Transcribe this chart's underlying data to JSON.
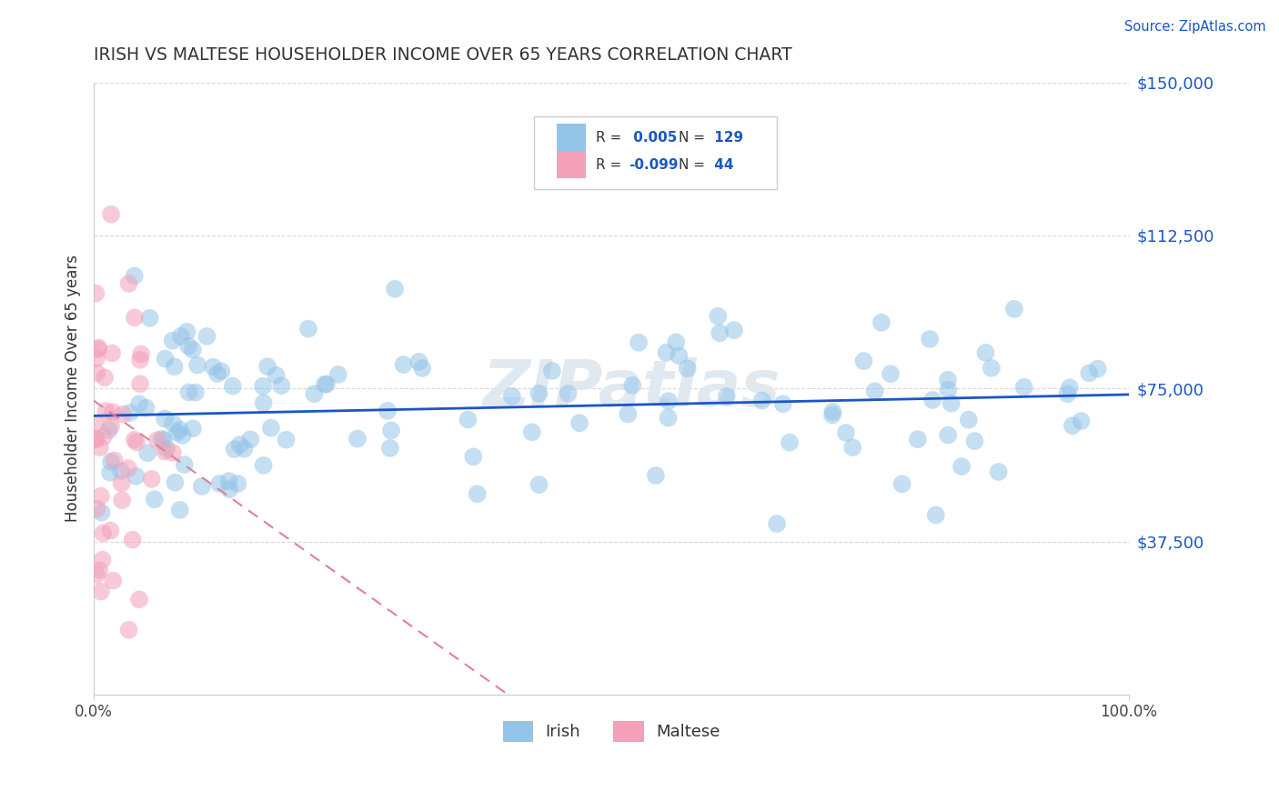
{
  "title": "IRISH VS MALTESE HOUSEHOLDER INCOME OVER 65 YEARS CORRELATION CHART",
  "source": "Source: ZipAtlas.com",
  "ylabel": "Householder Income Over 65 years",
  "irish_R": 0.005,
  "irish_N": 129,
  "maltese_R": -0.099,
  "maltese_N": 44,
  "irish_color": "#94C4E8",
  "maltese_color": "#F4A0B8",
  "irish_line_color": "#1A56C4",
  "maltese_line_color": "#E08098",
  "background_color": "#ffffff",
  "grid_color": "#d8d8d8",
  "title_color": "#333333",
  "axis_label_color": "#1A56C4",
  "source_color": "#1A56C4",
  "xlim": [
    0,
    100
  ],
  "ylim": [
    0,
    150000
  ],
  "ytick_vals": [
    0,
    37500,
    75000,
    112500,
    150000
  ],
  "ytick_labels": [
    "",
    "$37,500",
    "$75,000",
    "$112,500",
    "$150,000"
  ],
  "watermark": "ZIPatlas",
  "watermark_color": "#e0e8f0"
}
